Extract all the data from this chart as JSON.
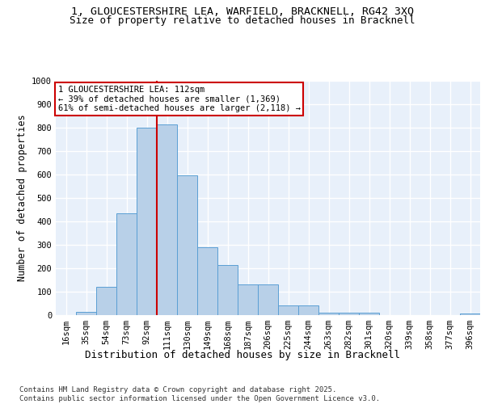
{
  "title_line1": "1, GLOUCESTERSHIRE LEA, WARFIELD, BRACKNELL, RG42 3XQ",
  "title_line2": "Size of property relative to detached houses in Bracknell",
  "xlabel": "Distribution of detached houses by size in Bracknell",
  "ylabel": "Number of detached properties",
  "bin_labels": [
    "16sqm",
    "35sqm",
    "54sqm",
    "73sqm",
    "92sqm",
    "111sqm",
    "130sqm",
    "149sqm",
    "168sqm",
    "187sqm",
    "206sqm",
    "225sqm",
    "244sqm",
    "263sqm",
    "282sqm",
    "301sqm",
    "320sqm",
    "339sqm",
    "358sqm",
    "377sqm",
    "396sqm"
  ],
  "bar_values": [
    0,
    15,
    120,
    435,
    800,
    815,
    595,
    290,
    215,
    130,
    130,
    42,
    42,
    12,
    12,
    10,
    0,
    0,
    0,
    0,
    8
  ],
  "bar_color": "#b8d0e8",
  "bar_edge_color": "#5a9fd4",
  "bg_color": "#e8f0fa",
  "grid_color": "#ffffff",
  "vline_x": 4.5,
  "vline_color": "#cc0000",
  "annotation_text": "1 GLOUCESTERSHIRE LEA: 112sqm\n← 39% of detached houses are smaller (1,369)\n61% of semi-detached houses are larger (2,118) →",
  "annotation_box_color": "#cc0000",
  "ylim": [
    0,
    1000
  ],
  "yticks": [
    0,
    100,
    200,
    300,
    400,
    500,
    600,
    700,
    800,
    900,
    1000
  ],
  "footnote": "Contains HM Land Registry data © Crown copyright and database right 2025.\nContains public sector information licensed under the Open Government Licence v3.0.",
  "title_fontsize": 9.5,
  "subtitle_fontsize": 9,
  "axis_label_fontsize": 8.5,
  "tick_fontsize": 7.5,
  "annotation_fontsize": 7.5,
  "footnote_fontsize": 6.5
}
